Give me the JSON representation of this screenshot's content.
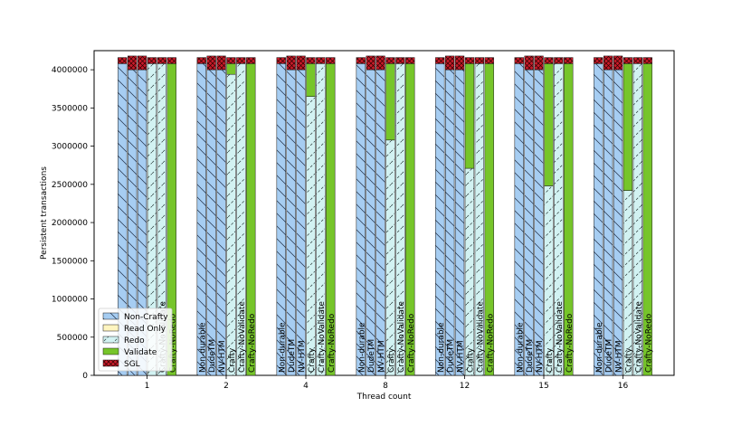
{
  "chart_data": {
    "type": "bar",
    "stacked": true,
    "xlabel": "Thread count",
    "ylabel": "Persistent transactions",
    "ylim": [
      0,
      4250000
    ],
    "yticks": [
      0,
      500000,
      1000000,
      1500000,
      2000000,
      2500000,
      3000000,
      3500000,
      4000000
    ],
    "ytick_labels": [
      "0",
      "500000",
      "1000000",
      "1500000",
      "2000000",
      "2500000",
      "3000000",
      "3500000",
      "4000000"
    ],
    "groups": [
      "1",
      "2",
      "4",
      "8",
      "12",
      "15",
      "16"
    ],
    "variants": [
      "Non-durable",
      "DudeTM",
      "NV-HTM",
      "Crafty",
      "Crafty-NoValidate",
      "Crafty-NoRedo"
    ],
    "grid": false,
    "legend_position": "lower-left",
    "series": [
      {
        "name": "Non-Crafty",
        "color": "#a6cdf2",
        "hatch": "back-diagonal",
        "values": [
          [
            4080000,
            4000000,
            4000000,
            0,
            0,
            0
          ],
          [
            4080000,
            4000000,
            4000000,
            0,
            0,
            0
          ],
          [
            4080000,
            4000000,
            4000000,
            0,
            0,
            0
          ],
          [
            4080000,
            4000000,
            4000000,
            0,
            0,
            0
          ],
          [
            4080000,
            4000000,
            4000000,
            0,
            0,
            0
          ],
          [
            4080000,
            4000000,
            4000000,
            0,
            0,
            0
          ],
          [
            4080000,
            4000000,
            4000000,
            0,
            0,
            0
          ]
        ]
      },
      {
        "name": "Read Only",
        "color": "#fff5c0",
        "hatch": "none",
        "values": [
          [
            0,
            0,
            0,
            0,
            0,
            0
          ],
          [
            0,
            0,
            0,
            0,
            0,
            0
          ],
          [
            0,
            0,
            0,
            0,
            0,
            0
          ],
          [
            0,
            0,
            0,
            0,
            0,
            0
          ],
          [
            0,
            0,
            0,
            0,
            0,
            0
          ],
          [
            0,
            0,
            0,
            0,
            0,
            0
          ],
          [
            0,
            0,
            0,
            0,
            0,
            0
          ]
        ]
      },
      {
        "name": "Redo",
        "color": "#d2f2f2",
        "hatch": "dashed-diagonal",
        "values": [
          [
            0,
            0,
            0,
            4080000,
            4080000,
            0
          ],
          [
            0,
            0,
            0,
            3940000,
            4080000,
            0
          ],
          [
            0,
            0,
            0,
            3650000,
            4080000,
            0
          ],
          [
            0,
            0,
            0,
            3080000,
            4080000,
            0
          ],
          [
            0,
            0,
            0,
            2710000,
            4080000,
            0
          ],
          [
            0,
            0,
            0,
            2480000,
            4080000,
            0
          ],
          [
            0,
            0,
            0,
            2420000,
            4080000,
            0
          ]
        ]
      },
      {
        "name": "Validate",
        "color": "#76c52a",
        "hatch": "none",
        "values": [
          [
            0,
            0,
            0,
            0,
            0,
            4080000
          ],
          [
            0,
            0,
            0,
            140000,
            0,
            4080000
          ],
          [
            0,
            0,
            0,
            430000,
            0,
            4080000
          ],
          [
            0,
            0,
            0,
            1000000,
            0,
            4080000
          ],
          [
            0,
            0,
            0,
            1370000,
            0,
            4080000
          ],
          [
            0,
            0,
            0,
            1600000,
            0,
            4080000
          ],
          [
            0,
            0,
            0,
            1660000,
            0,
            4080000
          ]
        ]
      },
      {
        "name": "SGL",
        "color": "#c81b2a",
        "hatch": "cross",
        "values": [
          [
            80000,
            180000,
            180000,
            80000,
            80000,
            80000
          ],
          [
            80000,
            180000,
            180000,
            80000,
            80000,
            80000
          ],
          [
            80000,
            180000,
            180000,
            80000,
            80000,
            80000
          ],
          [
            80000,
            180000,
            180000,
            80000,
            80000,
            80000
          ],
          [
            80000,
            180000,
            180000,
            80000,
            80000,
            80000
          ],
          [
            80000,
            180000,
            180000,
            80000,
            80000,
            80000
          ],
          [
            80000,
            180000,
            180000,
            80000,
            80000,
            80000
          ]
        ]
      }
    ]
  }
}
